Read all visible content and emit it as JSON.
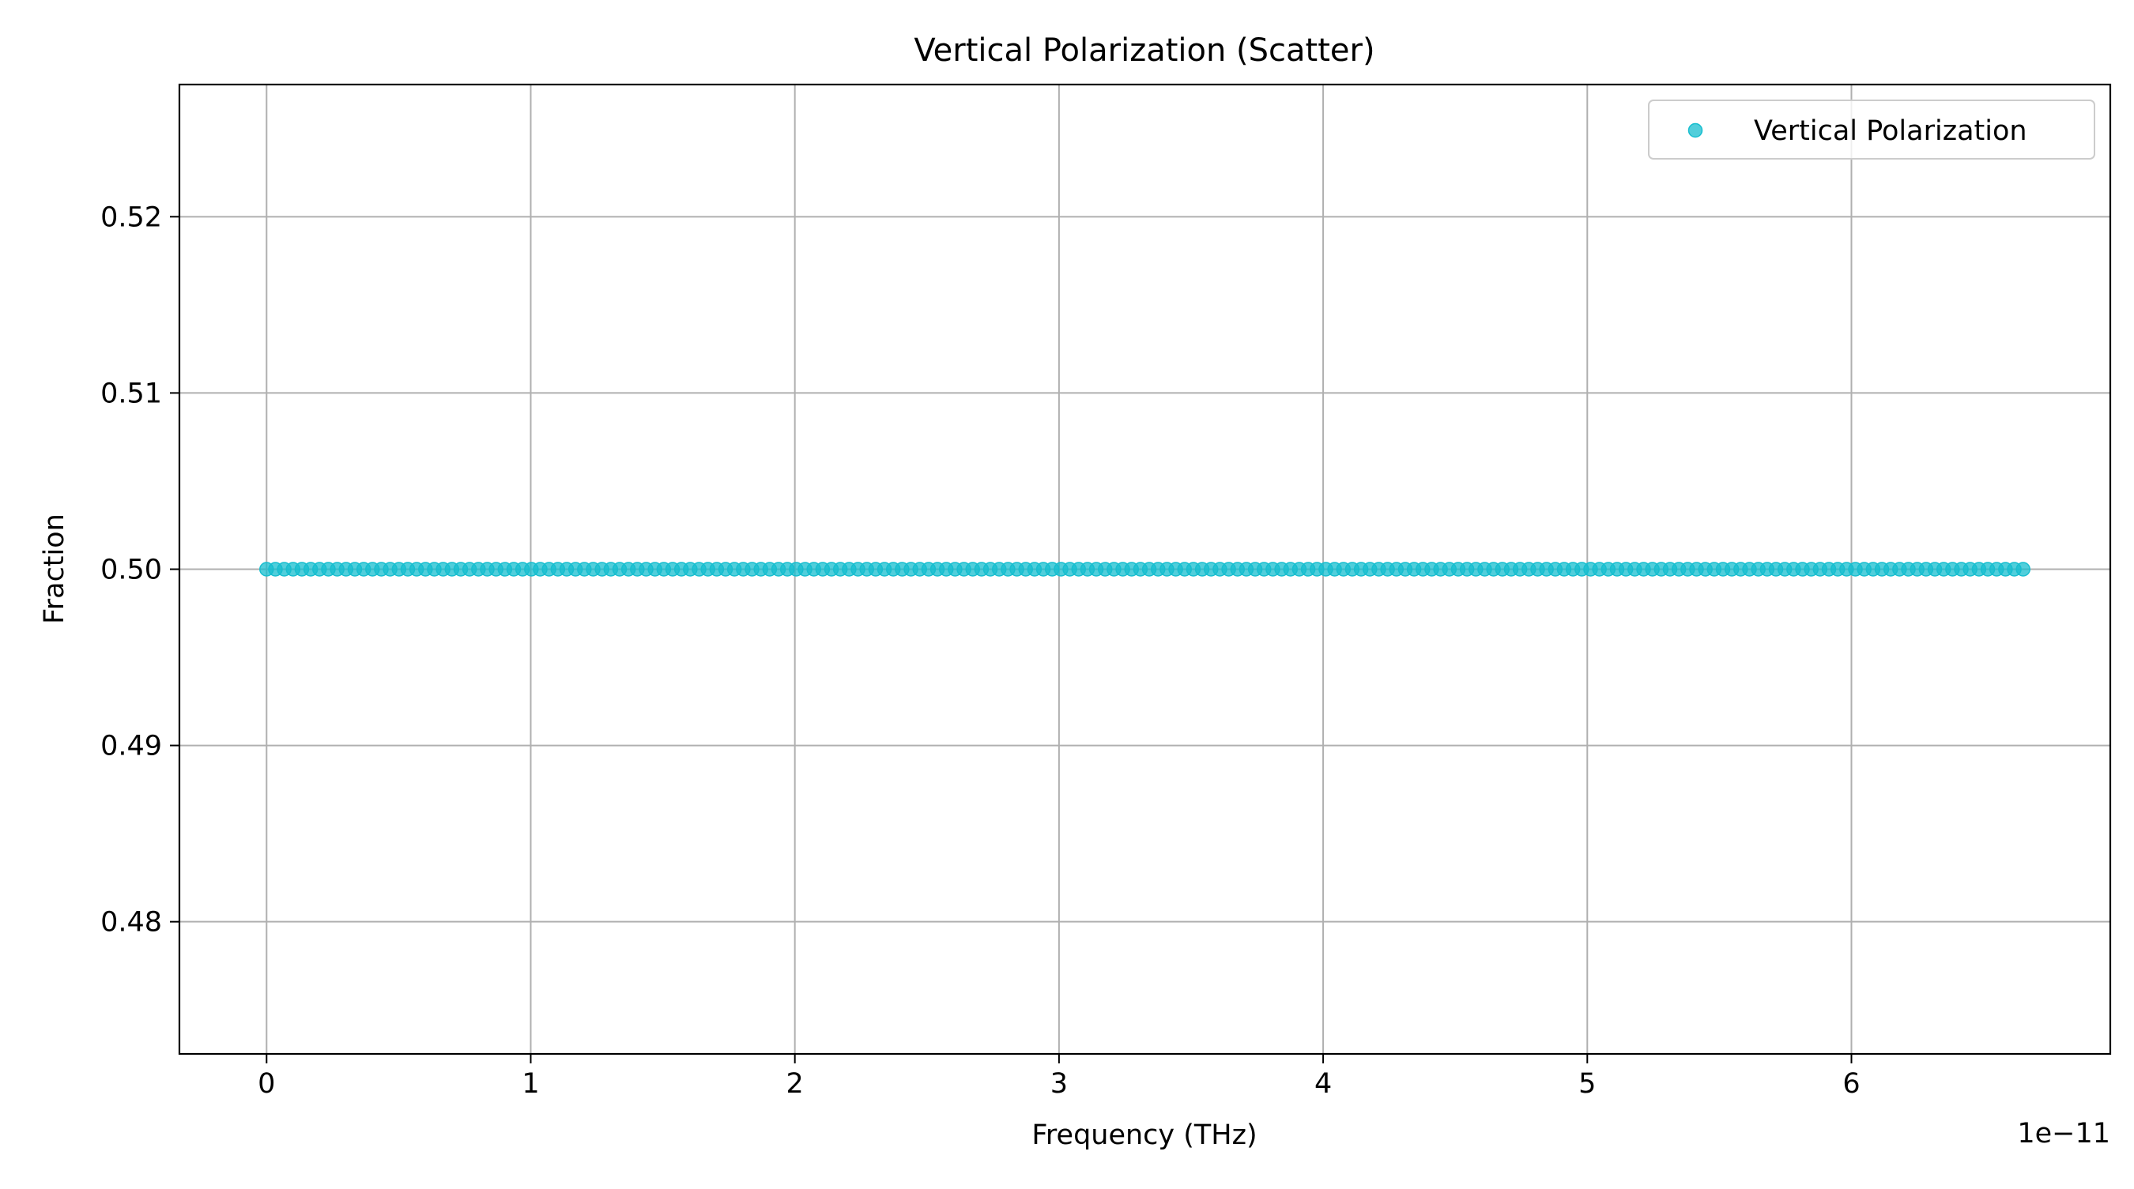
{
  "chart_data": {
    "type": "scatter",
    "title": "Vertical Polarization (Scatter)",
    "xlabel": "Frequency (THz)",
    "ylabel": "Fraction",
    "x_offset_label": "1e−11",
    "xlim": [
      -0.33,
      6.98
    ],
    "ylim": [
      0.4725,
      0.5275
    ],
    "xticks": [
      0,
      1,
      2,
      3,
      4,
      5,
      6
    ],
    "xtick_labels": [
      "0",
      "1",
      "2",
      "3",
      "4",
      "5",
      "6"
    ],
    "yticks": [
      0.48,
      0.49,
      0.5,
      0.51,
      0.52
    ],
    "ytick_labels": [
      "0.48",
      "0.49",
      "0.50",
      "0.51",
      "0.52"
    ],
    "grid": true,
    "legend_position": "top-right",
    "series": [
      {
        "name": "Vertical Polarization",
        "color": "#17becf",
        "marker": "circle",
        "x_start": 0,
        "x_end": 6.65,
        "num_points": 200,
        "y_constant": 0.5
      }
    ]
  }
}
